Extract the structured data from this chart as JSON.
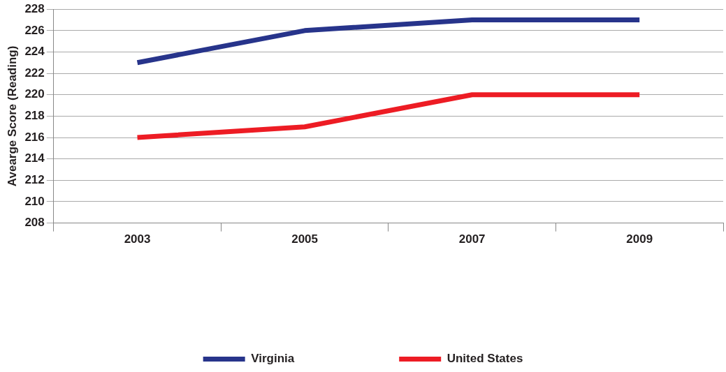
{
  "chart_data": {
    "type": "line",
    "ylabel": "Avearge Score (Reading)",
    "categories": [
      "2003",
      "2005",
      "2007",
      "2009"
    ],
    "series": [
      {
        "name": "Virginia",
        "color": "#27348b",
        "values": [
          223,
          226,
          227,
          227
        ]
      },
      {
        "name": "United States",
        "color": "#ed1c24",
        "values": [
          216,
          217,
          220,
          220
        ]
      }
    ],
    "ylim": [
      208,
      228
    ],
    "yticks": [
      208,
      210,
      212,
      214,
      216,
      218,
      220,
      222,
      224,
      226,
      228
    ],
    "grid": "y",
    "legend": "bottom",
    "marker": "none",
    "line_style": "solid"
  }
}
